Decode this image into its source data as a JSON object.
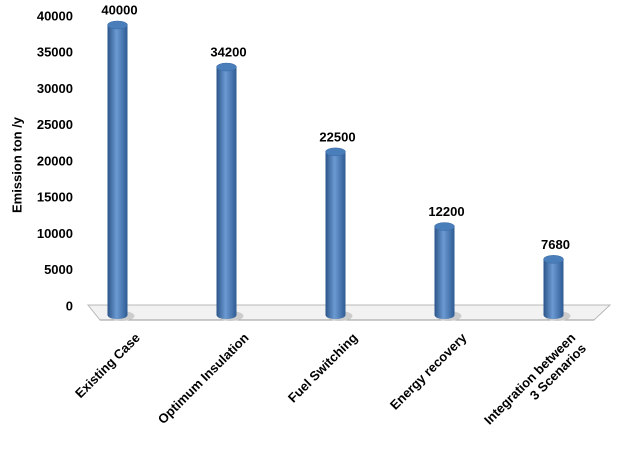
{
  "chart_data": {
    "type": "bar",
    "style": "cylinder",
    "y_label": "Emission ton /y",
    "categories": [
      "Existing Case",
      "Optimum Insulation",
      "Fuel Switching",
      "Energy recovery",
      "Integration between\n3 Scenarios"
    ],
    "values": [
      40000,
      34200,
      22500,
      12200,
      7680
    ],
    "color": "#4a7ebb",
    "ylim": [
      0,
      40000
    ],
    "yticks": [
      0,
      5000,
      10000,
      15000,
      20000,
      25000,
      30000,
      35000,
      40000
    ],
    "grid": false
  }
}
